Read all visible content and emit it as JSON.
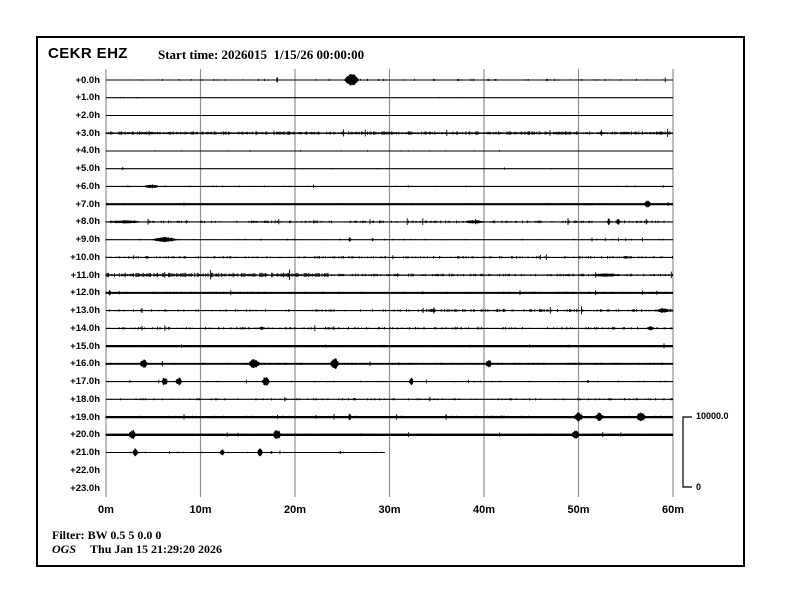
{
  "header": {
    "station": "CEKR EHZ",
    "start_time_label": "Start time: 2026015  1/15/26 00:00:00"
  },
  "footer": {
    "filter_label": "Filter: BW 0.5 5 0.0 0",
    "agency": "OGS",
    "timestamp": "Thu Jan 15 21:29:20 2026"
  },
  "scale_bar": {
    "max_label": "10000.0",
    "min_label": "0"
  },
  "colors": {
    "trace": "#000000",
    "grid": "#909090"
  },
  "chart_data": {
    "type": "seismogram-helicorder",
    "title": "CEKR EHZ",
    "xlabel_ticks": [
      "0m",
      "10m",
      "20m",
      "30m",
      "40m",
      "50m",
      "60m"
    ],
    "minutes_per_row": 60,
    "scale_counts_max": 10000.0,
    "scale_counts_min": 0,
    "rows": [
      {
        "label": "+0.0h",
        "end": 60,
        "thick": 1.1,
        "noise": [
          [
            0,
            60,
            0.18,
            1.1
          ]
        ],
        "bursts": [
          {
            "t": 18.1,
            "w": 0.18,
            "a": 4.0
          },
          {
            "t": 26.0,
            "w": 1.6,
            "a": 6.5
          }
        ]
      },
      {
        "label": "+1.0h",
        "end": 60,
        "thick": 1.1,
        "noise": [
          [
            0,
            60,
            0.02,
            0.7
          ]
        ],
        "bursts": []
      },
      {
        "label": "+2.0h",
        "end": 60,
        "thick": 1.1,
        "noise": [
          [
            0,
            60,
            0.02,
            0.7
          ]
        ],
        "bursts": []
      },
      {
        "label": "+3.0h",
        "end": 60,
        "thick": 1.4,
        "noise": [
          [
            0,
            60,
            0.85,
            1.6
          ]
        ],
        "bursts": []
      },
      {
        "label": "+4.0h",
        "end": 60,
        "thick": 1.1,
        "noise": [
          [
            0,
            60,
            0.05,
            0.8
          ]
        ],
        "bursts": []
      },
      {
        "label": "+5.0h",
        "end": 60,
        "thick": 1.1,
        "noise": [
          [
            0,
            60,
            0.04,
            0.8
          ]
        ],
        "bursts": []
      },
      {
        "label": "+6.0h",
        "end": 60,
        "thick": 1.1,
        "noise": [
          [
            0,
            60,
            0.08,
            0.8
          ]
        ],
        "bursts": [
          {
            "t": 4.8,
            "w": 1.8,
            "a": 2.2
          },
          {
            "t": 32,
            "w": 0.12,
            "a": 1.5
          },
          {
            "t": 59,
            "w": 0.2,
            "a": 1.5
          }
        ]
      },
      {
        "label": "+7.0h",
        "end": 60,
        "thick": 2.2,
        "noise": [
          [
            0,
            60,
            0.3,
            0.9
          ]
        ],
        "bursts": [
          {
            "t": 57.3,
            "w": 0.8,
            "a": 4.0
          },
          {
            "t": 59.5,
            "w": 0.3,
            "a": 2.0
          }
        ]
      },
      {
        "label": "+8.0h",
        "end": 60,
        "thick": 1.1,
        "noise": [
          [
            0,
            60,
            0.45,
            1.3
          ]
        ],
        "bursts": [
          {
            "t": 2,
            "w": 4,
            "a": 1.8
          },
          {
            "t": 39,
            "w": 2.5,
            "a": 2.0
          },
          {
            "t": 48.9,
            "w": 0.15,
            "a": 3.0
          },
          {
            "t": 53.2,
            "w": 0.35,
            "a": 4.0
          },
          {
            "t": 54.2,
            "w": 0.35,
            "a": 4.0
          },
          {
            "t": 57.2,
            "w": 0.15,
            "a": 3.5
          }
        ]
      },
      {
        "label": "+9.0h",
        "end": 60,
        "thick": 1.1,
        "noise": [
          [
            0,
            60,
            0.15,
            0.9
          ]
        ],
        "bursts": [
          {
            "t": 6.2,
            "w": 3.0,
            "a": 2.8
          },
          {
            "t": 25.8,
            "w": 0.3,
            "a": 2.5
          },
          {
            "t": 28.2,
            "w": 0.15,
            "a": 2.0
          }
        ]
      },
      {
        "label": "+10.0h",
        "end": 60,
        "thick": 1.1,
        "noise": [
          [
            0,
            60,
            0.4,
            1.2
          ]
        ],
        "bursts": [
          {
            "t": 55,
            "w": 1.0,
            "a": 1.5
          }
        ]
      },
      {
        "label": "+11.0h",
        "end": 60,
        "thick": 1.2,
        "noise": [
          [
            0,
            23.5,
            0.85,
            2.1
          ],
          [
            23.5,
            60,
            0.5,
            1.3
          ]
        ],
        "bursts": [
          {
            "t": 52.8,
            "w": 4.0,
            "a": 1.9
          }
        ]
      },
      {
        "label": "+12.0h",
        "end": 60,
        "thick": 2.0,
        "noise": [
          [
            0,
            60,
            0.5,
            1.0
          ]
        ],
        "bursts": [
          {
            "t": 0.4,
            "w": 0.3,
            "a": 3.0
          },
          {
            "t": 58.3,
            "w": 0.2,
            "a": 2.5
          }
        ]
      },
      {
        "label": "+13.0h",
        "end": 60,
        "thick": 1.1,
        "noise": [
          [
            0,
            30,
            0.3,
            1.2
          ],
          [
            30,
            60,
            0.55,
            1.5
          ]
        ],
        "bursts": [
          {
            "t": 34.7,
            "w": 0.25,
            "a": 3.5
          },
          {
            "t": 59,
            "w": 1.8,
            "a": 2.5
          }
        ]
      },
      {
        "label": "+14.0h",
        "end": 60,
        "thick": 1.1,
        "noise": [
          [
            0,
            60,
            0.35,
            1.3
          ]
        ],
        "bursts": [
          {
            "t": 16.5,
            "w": 0.8,
            "a": 1.8
          },
          {
            "t": 57.6,
            "w": 0.8,
            "a": 2.5
          }
        ]
      },
      {
        "label": "+15.0h",
        "end": 60,
        "thick": 2.2,
        "noise": [
          [
            0,
            60,
            0.5,
            1.0
          ]
        ],
        "bursts": [
          {
            "t": 49,
            "w": 0.3,
            "a": 2.0
          }
        ]
      },
      {
        "label": "+16.0h",
        "end": 60,
        "thick": 1.8,
        "noise": [
          [
            0,
            60,
            0.45,
            1.0
          ]
        ],
        "bursts": [
          {
            "t": 4.0,
            "w": 0.9,
            "a": 5.0
          },
          {
            "t": 15.7,
            "w": 1.3,
            "a": 5.5
          },
          {
            "t": 24.2,
            "w": 1.0,
            "a": 6.0
          },
          {
            "t": 40.5,
            "w": 0.7,
            "a": 4.5
          }
        ]
      },
      {
        "label": "+17.0h",
        "end": 60,
        "thick": 1.1,
        "noise": [
          [
            0,
            60,
            0.12,
            0.9
          ]
        ],
        "bursts": [
          {
            "t": 6.2,
            "w": 0.7,
            "a": 4.5
          },
          {
            "t": 7.7,
            "w": 0.7,
            "a": 4.5
          },
          {
            "t": 16.9,
            "w": 0.9,
            "a": 5.0
          },
          {
            "t": 32.3,
            "w": 0.5,
            "a": 4.0
          },
          {
            "t": 51,
            "w": 0.15,
            "a": 1.8
          }
        ]
      },
      {
        "label": "+18.0h",
        "end": 60,
        "thick": 1.1,
        "noise": [
          [
            0,
            60,
            0.3,
            1.1
          ]
        ],
        "bursts": [
          {
            "t": 42.8,
            "w": 0.3,
            "a": 1.6
          },
          {
            "t": 47.5,
            "w": 0.2,
            "a": 1.5
          },
          {
            "t": 53.3,
            "w": 0.4,
            "a": 1.6
          }
        ]
      },
      {
        "label": "+19.0h",
        "end": 60,
        "thick": 2.2,
        "noise": [
          [
            0,
            60,
            0.5,
            1.1
          ]
        ],
        "bursts": [
          {
            "t": 25.8,
            "w": 0.3,
            "a": 4.0
          },
          {
            "t": 36,
            "w": 0.25,
            "a": 3.0
          },
          {
            "t": 50,
            "w": 1.1,
            "a": 5.0
          },
          {
            "t": 52.2,
            "w": 1.1,
            "a": 4.5
          },
          {
            "t": 56.6,
            "w": 1.1,
            "a": 5.0
          }
        ]
      },
      {
        "label": "+20.0h",
        "end": 60,
        "thick": 2.4,
        "noise": [
          [
            0,
            60,
            0.45,
            1.0
          ]
        ],
        "bursts": [
          {
            "t": 2.8,
            "w": 0.9,
            "a": 5.0
          },
          {
            "t": 18.1,
            "w": 1.0,
            "a": 5.0
          },
          {
            "t": 49.7,
            "w": 0.9,
            "a": 5.0
          }
        ]
      },
      {
        "label": "+21.0h",
        "end": 29.5,
        "thick": 1.1,
        "noise": [
          [
            0,
            29.5,
            0.15,
            0.8
          ]
        ],
        "bursts": [
          {
            "t": 3.1,
            "w": 0.6,
            "a": 4.5
          },
          {
            "t": 12.3,
            "w": 0.5,
            "a": 4.0
          },
          {
            "t": 16.3,
            "w": 0.6,
            "a": 4.5
          },
          {
            "t": 17.5,
            "w": 0.12,
            "a": 2.0
          },
          {
            "t": 24.8,
            "w": 0.12,
            "a": 2.5
          }
        ]
      },
      {
        "label": "+22.0h",
        "end": 0,
        "thick": 0,
        "noise": [],
        "bursts": []
      },
      {
        "label": "+23.0h",
        "end": 0,
        "thick": 0,
        "noise": [],
        "bursts": []
      }
    ]
  }
}
